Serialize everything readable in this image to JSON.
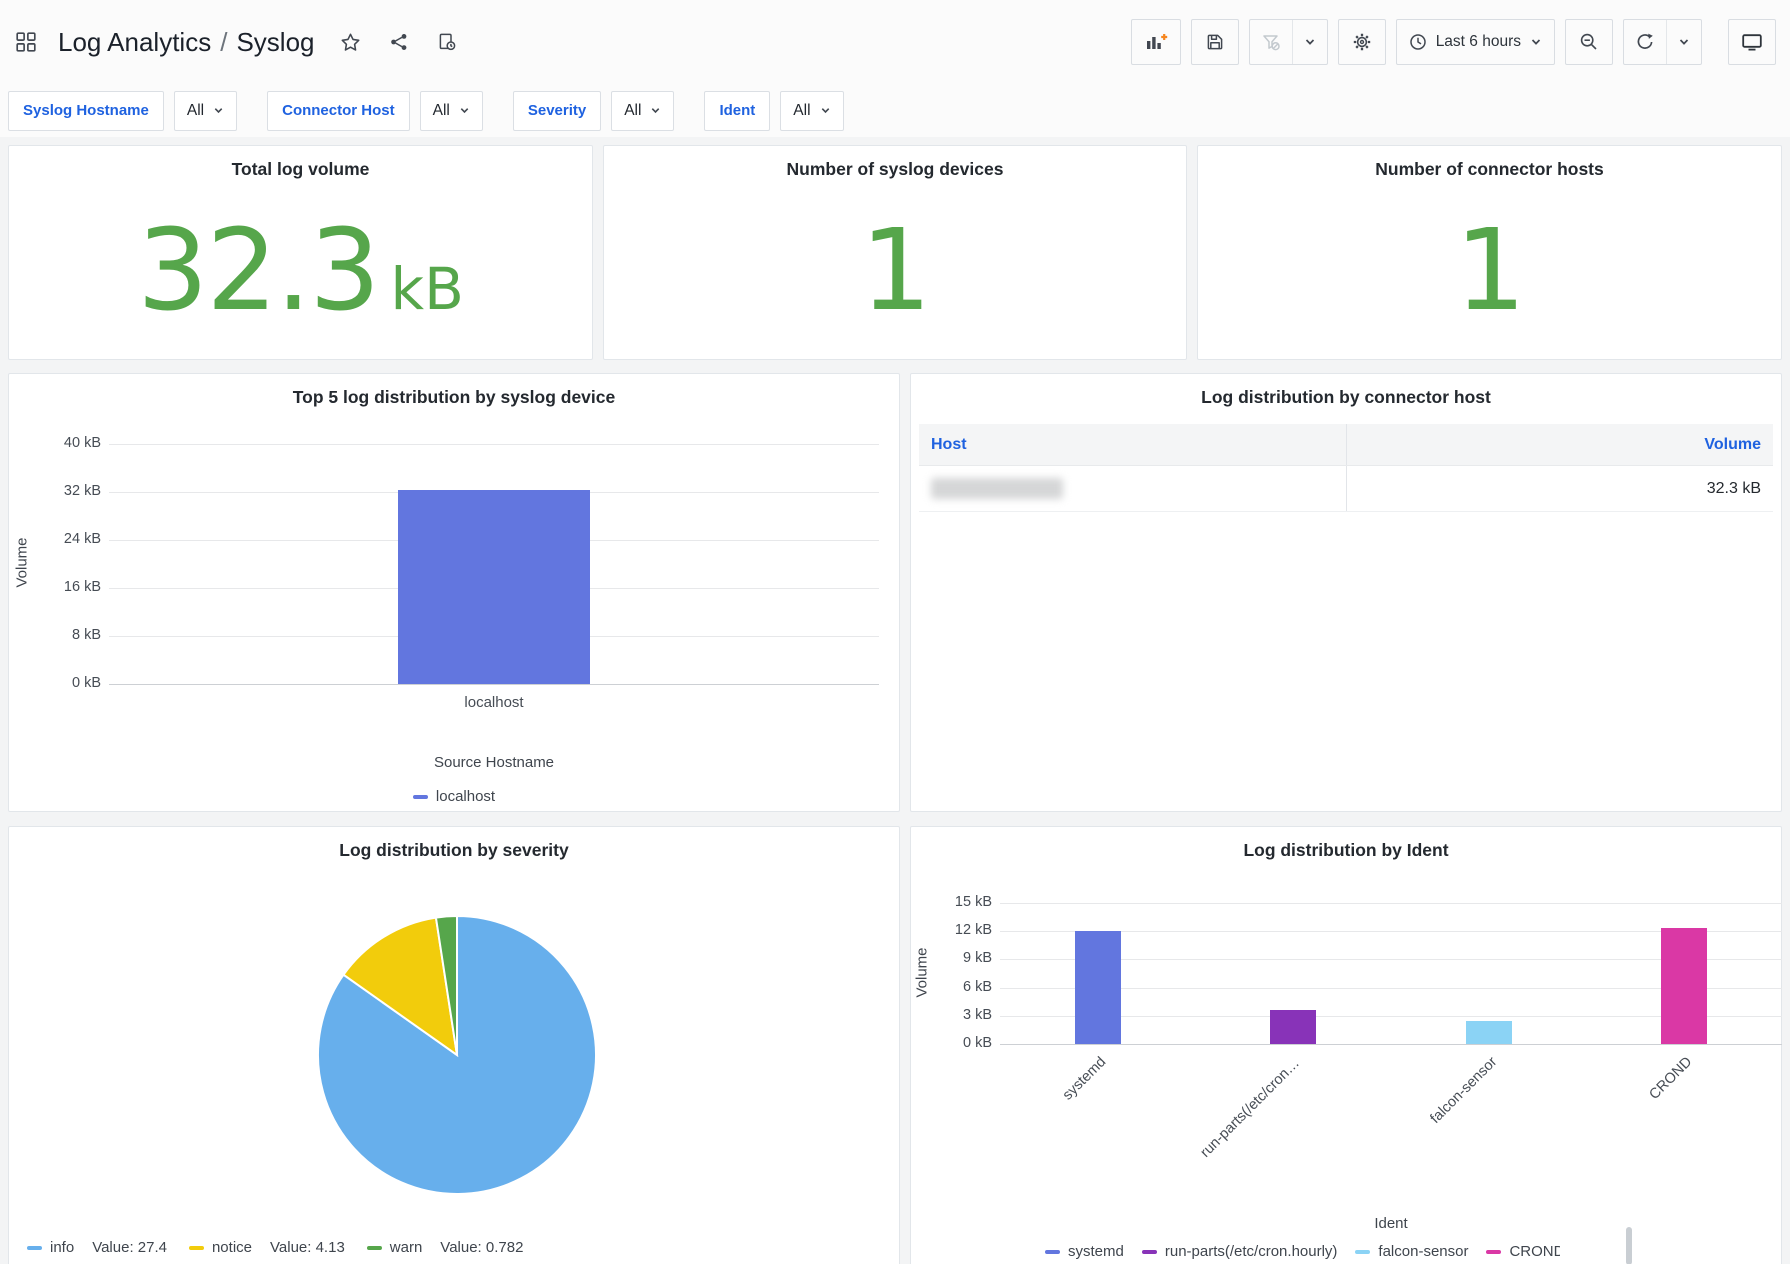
{
  "header": {
    "folder": "Log Analytics",
    "separator": "/",
    "dashboard": "Syslog",
    "time_range": "Last 6 hours"
  },
  "filters": [
    {
      "label": "Syslog Hostname",
      "value": "All"
    },
    {
      "label": "Connector Host",
      "value": "All"
    },
    {
      "label": "Severity",
      "value": "All"
    },
    {
      "label": "Ident",
      "value": "All"
    }
  ],
  "stats": [
    {
      "title": "Total log volume",
      "value": "32.3",
      "unit": "kB"
    },
    {
      "title": "Number of syslog devices",
      "value": "1",
      "unit": ""
    },
    {
      "title": "Number of connector hosts",
      "value": "1",
      "unit": ""
    }
  ],
  "chart_data": [
    {
      "id": "syslog_devices",
      "type": "bar",
      "title": "Top 5 log distribution by syslog device",
      "categories": [
        "localhost"
      ],
      "values": [
        32.3
      ],
      "unit": "kB",
      "ylabel": "Volume",
      "xlabel": "Source Hostname",
      "ylim": [
        0,
        40
      ],
      "yticks": [
        0,
        8,
        16,
        24,
        32,
        40
      ],
      "colors": [
        "#6276df"
      ],
      "legend": [
        "localhost"
      ],
      "legend_position": "bottom",
      "grid": true
    },
    {
      "id": "connector_hosts",
      "type": "table",
      "title": "Log distribution by connector host",
      "columns": [
        "Host",
        "Volume"
      ],
      "rows": [
        {
          "host": "",
          "host_redacted": true,
          "volume": "32.3 kB"
        }
      ]
    },
    {
      "id": "severity",
      "type": "pie",
      "title": "Log distribution by severity",
      "value_prefix": "Value:",
      "slices": [
        {
          "name": "info",
          "value": 27.4,
          "color": "#67afec"
        },
        {
          "name": "notice",
          "value": 4.13,
          "color": "#f2cc0c"
        },
        {
          "name": "warn",
          "value": 0.782,
          "color": "#56a64b"
        }
      ],
      "legend_position": "bottom"
    },
    {
      "id": "ident",
      "type": "bar",
      "title": "Log distribution by Ident",
      "categories": [
        "systemd",
        "run-parts(/etc/cron.hourly)",
        "falcon-sensor",
        "CROND"
      ],
      "values": [
        12,
        3.65,
        2.45,
        12.3
      ],
      "unit": "kB",
      "ylabel": "Volume",
      "xlabel": "Ident",
      "ylim": [
        0,
        15
      ],
      "yticks": [
        0,
        3,
        6,
        9,
        12,
        15
      ],
      "colors": [
        "#6276df",
        "#8833b8",
        "#8bd3f5",
        "#da38a5"
      ],
      "legend": [
        "systemd",
        "run-parts(/etc/cron.hourly)",
        "falcon-sensor",
        "CROND"
      ],
      "legend_position": "bottom",
      "grid": true
    }
  ]
}
